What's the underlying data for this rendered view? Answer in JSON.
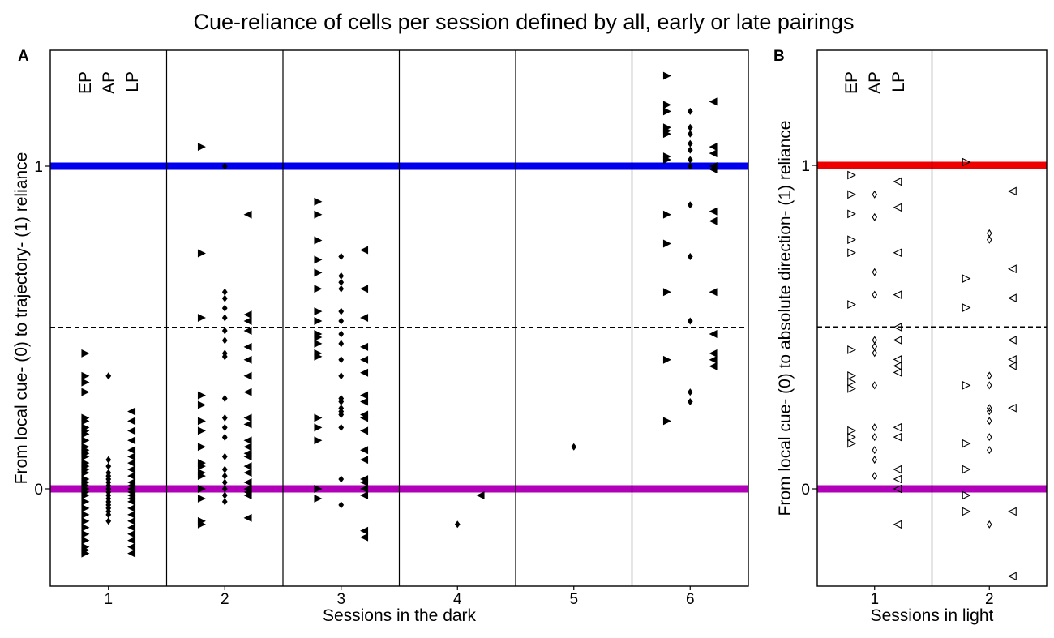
{
  "title": "Cue-reliance of cells per session defined by all, early or late pairings",
  "colors": {
    "blue": "#0000ee",
    "red": "#ee0000",
    "purple": "#b000b8",
    "black": "#000000"
  },
  "chart_data": [
    {
      "panel_label": "A",
      "type": "scatter",
      "xlabel": "Sessions in the dark",
      "ylabel": "From local cue- (0) to trajectory- (1) reliance",
      "categories": [
        "1",
        "2",
        "3",
        "4",
        "5",
        "6"
      ],
      "ylim": [
        -0.3,
        1.3
      ],
      "yticks": [
        {
          "value": 0,
          "label": "0"
        },
        {
          "value": 1,
          "label": "1"
        }
      ],
      "column_labels": [
        "EP",
        "AP",
        "LP"
      ],
      "reference_lines": [
        {
          "value": 1,
          "color": "#0000ee",
          "style": "solid-thick"
        },
        {
          "value": 0.5,
          "color": "#000000",
          "style": "dashed"
        },
        {
          "value": 0,
          "color": "#b000b8",
          "style": "solid-thick"
        }
      ],
      "series": [
        {
          "name": "EP",
          "marker": "triangle-right",
          "filled": true,
          "points": [
            {
              "session": 1,
              "values": [
                0.42,
                0.35,
                0.33,
                0.3,
                0.22,
                0.21,
                0.19,
                0.18,
                0.17,
                0.15,
                0.13,
                0.12,
                0.11,
                0.1,
                0.08,
                0.07,
                0.06,
                0.05,
                0.03,
                0.02,
                0.01,
                0.0,
                -0.01,
                -0.02,
                -0.04,
                -0.06,
                -0.08,
                -0.1,
                -0.12,
                -0.14,
                -0.16,
                -0.18,
                -0.19,
                -0.2
              ]
            },
            {
              "session": 2,
              "values": [
                1.06,
                0.73,
                0.53,
                0.29,
                0.26,
                0.21,
                0.18,
                0.13,
                0.08,
                0.07,
                0.05,
                0.04,
                0.0,
                -0.03,
                -0.1,
                -0.11
              ]
            },
            {
              "session": 3,
              "values": [
                0.89,
                0.85,
                0.77,
                0.71,
                0.67,
                0.62,
                0.55,
                0.52,
                0.48,
                0.47,
                0.45,
                0.42,
                0.41,
                0.22,
                0.19,
                0.15,
                0.0,
                -0.03
              ]
            },
            {
              "session": 6,
              "values": [
                1.28,
                1.19,
                1.17,
                1.12,
                1.11,
                1.1,
                1.03,
                1.02,
                0.85,
                0.76,
                0.61,
                0.4,
                0.21
              ]
            }
          ]
        },
        {
          "name": "AP",
          "marker": "diamond",
          "filled": true,
          "points": [
            {
              "session": 1,
              "values": [
                0.35,
                0.09,
                0.07,
                0.05,
                0.04,
                0.03,
                0.02,
                0.01,
                0.0,
                -0.01,
                -0.02,
                -0.03,
                -0.04,
                -0.05,
                -0.06,
                -0.07,
                -0.08,
                -0.1
              ]
            },
            {
              "session": 2,
              "values": [
                1.0,
                0.61,
                0.59,
                0.56,
                0.53,
                0.49,
                0.46,
                0.42,
                0.41,
                0.28,
                0.22,
                0.19,
                0.16,
                0.1,
                0.06,
                0.04,
                0.02,
                0.0,
                -0.02,
                -0.04
              ]
            },
            {
              "session": 3,
              "values": [
                0.72,
                0.66,
                0.64,
                0.62,
                0.55,
                0.52,
                0.48,
                0.45,
                0.4,
                0.35,
                0.28,
                0.27,
                0.25,
                0.24,
                0.23,
                0.19,
                0.03,
                -0.05
              ]
            },
            {
              "session": 4,
              "values": [
                -0.11
              ]
            },
            {
              "session": 5,
              "values": [
                0.13
              ]
            },
            {
              "session": 6,
              "values": [
                1.17,
                1.12,
                1.1,
                1.07,
                1.05,
                1.02,
                1.0,
                0.88,
                0.72,
                0.52,
                0.3,
                0.27
              ]
            }
          ]
        },
        {
          "name": "LP",
          "marker": "triangle-left",
          "filled": true,
          "points": [
            {
              "session": 1,
              "values": [
                0.24,
                0.21,
                0.18,
                0.15,
                0.12,
                0.1,
                0.08,
                0.06,
                0.04,
                0.02,
                0.01,
                0.0,
                -0.01,
                -0.02,
                -0.03,
                -0.04,
                -0.06,
                -0.08,
                -0.1,
                -0.12,
                -0.14,
                -0.16,
                -0.18,
                -0.2
              ]
            },
            {
              "session": 2,
              "values": [
                0.85,
                0.54,
                0.52,
                0.49,
                0.44,
                0.4,
                0.35,
                0.3,
                0.22,
                0.2,
                0.15,
                0.13,
                0.11,
                0.1,
                0.07,
                0.05,
                0.02,
                0.0,
                -0.01,
                -0.02,
                -0.09
              ]
            },
            {
              "session": 3,
              "values": [
                0.74,
                0.62,
                0.53,
                0.44,
                0.4,
                0.36,
                0.29,
                0.27,
                0.23,
                0.22,
                0.18,
                0.12,
                0.09,
                0.03,
                0.02,
                0.0,
                -0.02,
                -0.13,
                -0.15
              ]
            },
            {
              "session": 4,
              "values": [
                -0.02
              ]
            },
            {
              "session": 6,
              "values": [
                1.2,
                1.06,
                1.04,
                1.0,
                0.99,
                0.86,
                0.83,
                0.61,
                0.48,
                0.42,
                0.4,
                0.38
              ]
            }
          ]
        }
      ]
    },
    {
      "panel_label": "B",
      "type": "scatter",
      "xlabel": "Sessions in light",
      "ylabel": "From local cue- (0) to absolute direction- (1) reliance",
      "categories": [
        "1",
        "2"
      ],
      "ylim": [
        -0.3,
        1.3
      ],
      "yticks": [
        {
          "value": 0,
          "label": "0"
        },
        {
          "value": 1,
          "label": "1"
        }
      ],
      "column_labels": [
        "EP",
        "AP",
        "LP"
      ],
      "reference_lines": [
        {
          "value": 1,
          "color": "#ee0000",
          "style": "solid-thick"
        },
        {
          "value": 0.5,
          "color": "#000000",
          "style": "dashed"
        },
        {
          "value": 0,
          "color": "#b000b8",
          "style": "solid-thick"
        }
      ],
      "series": [
        {
          "name": "EP",
          "marker": "triangle-right",
          "filled": false,
          "points": [
            {
              "session": 1,
              "values": [
                0.97,
                0.91,
                0.85,
                0.77,
                0.73,
                0.57,
                0.43,
                0.35,
                0.33,
                0.31,
                0.18,
                0.16,
                0.14
              ]
            },
            {
              "session": 2,
              "values": [
                1.01,
                0.65,
                0.56,
                0.32,
                0.14,
                0.06,
                -0.02,
                -0.07
              ]
            }
          ]
        },
        {
          "name": "AP",
          "marker": "diamond",
          "filled": false,
          "points": [
            {
              "session": 1,
              "values": [
                0.91,
                0.84,
                0.67,
                0.6,
                0.46,
                0.44,
                0.42,
                0.32,
                0.19,
                0.16,
                0.12,
                0.09,
                0.04
              ]
            },
            {
              "session": 2,
              "values": [
                0.79,
                0.77,
                0.35,
                0.32,
                0.25,
                0.24,
                0.21,
                0.16,
                0.12,
                -0.11
              ]
            }
          ]
        },
        {
          "name": "LP",
          "marker": "triangle-left",
          "filled": false,
          "points": [
            {
              "session": 1,
              "values": [
                0.95,
                0.87,
                0.73,
                0.6,
                0.5,
                0.46,
                0.4,
                0.38,
                0.36,
                0.19,
                0.16,
                0.06,
                0.03,
                0.0,
                -0.11
              ]
            },
            {
              "session": 2,
              "values": [
                0.92,
                0.68,
                0.59,
                0.46,
                0.4,
                0.38,
                0.25,
                -0.07,
                -0.27
              ]
            }
          ]
        }
      ]
    }
  ]
}
